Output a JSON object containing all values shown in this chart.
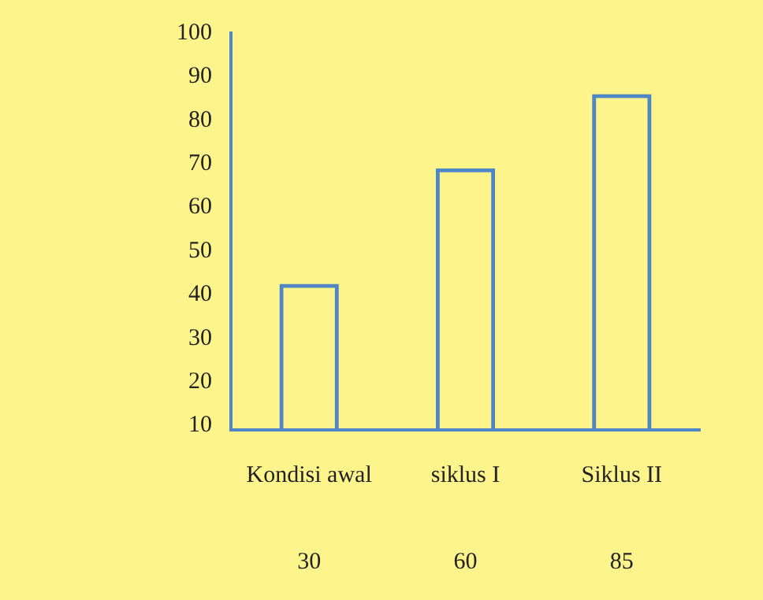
{
  "chart_data": {
    "type": "bar",
    "categories": [
      "Kondisi awal",
      "siklus I",
      "Siklus II"
    ],
    "values": [
      42.5,
      69,
      86
    ],
    "color": "#4f86c6",
    "ylim": [
      9,
      100
    ],
    "yticks": [
      10,
      20,
      30,
      40,
      50,
      60,
      70,
      80,
      90,
      100
    ],
    "grid": false,
    "legend": false,
    "annotations": [
      "30",
      "60",
      "85"
    ]
  }
}
